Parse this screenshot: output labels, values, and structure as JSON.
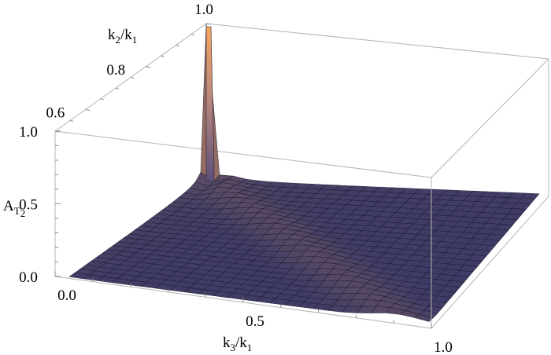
{
  "chart_data": {
    "type": "surface3d",
    "title": "",
    "x_axis": {
      "label": "k3/k1",
      "range": [
        0.0,
        1.0
      ],
      "ticks": [
        "0.0",
        "0.5",
        "1.0"
      ]
    },
    "y_axis": {
      "label": "k2/k1",
      "range": [
        0.5,
        1.0
      ],
      "ticks": [
        "0.6",
        "0.8",
        "1.0"
      ]
    },
    "z_axis": {
      "label": "AT2",
      "range": [
        0.0,
        1.0
      ],
      "ticks": [
        "0.0",
        "0.5",
        "1.0"
      ]
    },
    "surface": {
      "description_values": "A_T2 ≈ 0 over most of the domain; sharp peak rising to 1.0 near k3/k1 = 0, k2/k1 = 1; faint ridge along k2/k1 + k3/k1 ≈ 1",
      "peak": {
        "x": 0.0,
        "y": 1.0,
        "z": 1.0
      },
      "baseline": 0.0
    },
    "colors": {
      "low": "#3c3a66",
      "high": "#f0a060",
      "mesh": "#1b1b2e"
    },
    "box": true,
    "grid": false
  },
  "labels": {
    "x_axis_main": "k",
    "x_axis_sub1": "3",
    "x_axis_mid": "/k",
    "x_axis_sub2": "1",
    "y_axis_main": "k",
    "y_axis_sub1": "2",
    "y_axis_mid": "/k",
    "y_axis_sub2": "1",
    "z_axis_main": "A",
    "z_axis_sub1": "T",
    "z_axis_sub2": "2"
  }
}
